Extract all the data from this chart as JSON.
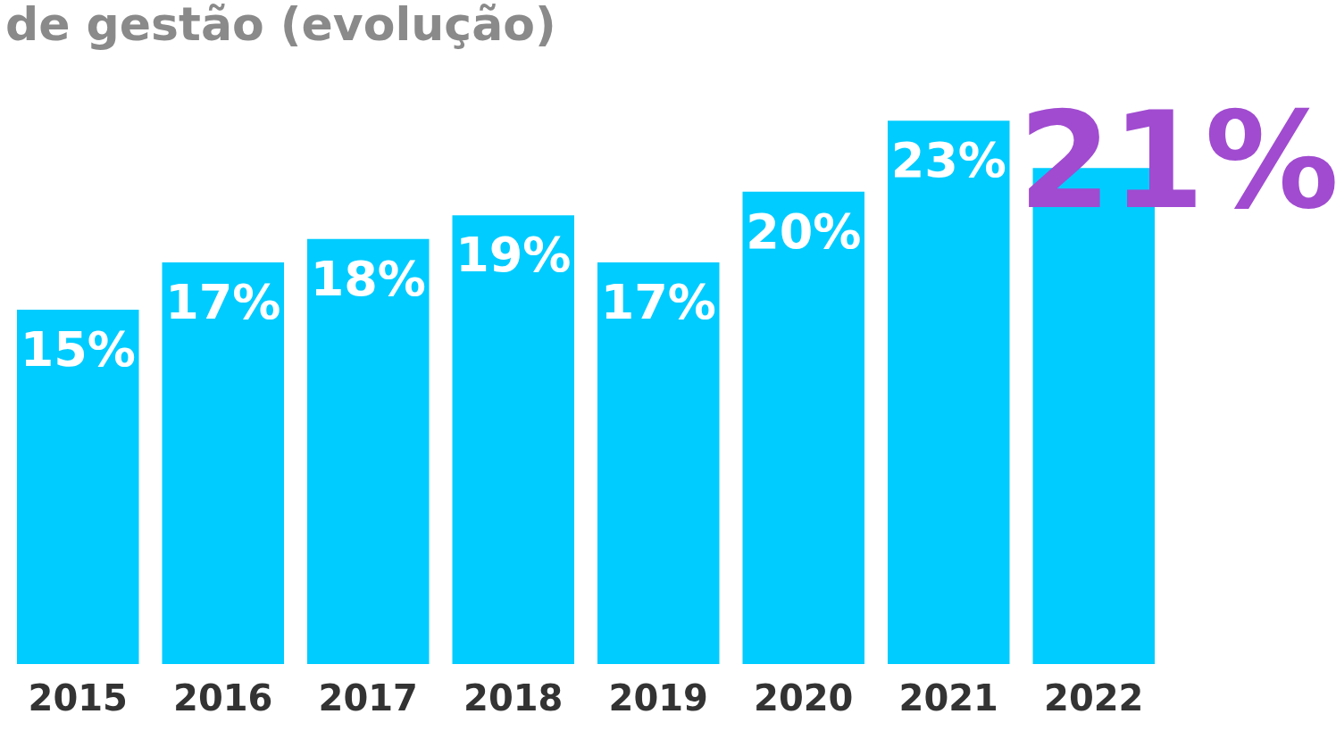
{
  "chart_data": {
    "type": "bar",
    "title": "de gestão (evolução)",
    "categories": [
      "2015",
      "2016",
      "2017",
      "2018",
      "2019",
      "2020",
      "2021",
      "2022"
    ],
    "values": [
      15,
      17,
      18,
      19,
      17,
      20,
      23,
      21
    ],
    "color": "#00ccff",
    "value_labels": [
      "15%",
      "17%",
      "18%",
      "19%",
      "17%",
      "20%",
      "23%",
      null
    ],
    "annotations": [
      {
        "text": "21%",
        "x": "2022",
        "y": 21
      }
    ],
    "grid": false,
    "legend": false
  }
}
